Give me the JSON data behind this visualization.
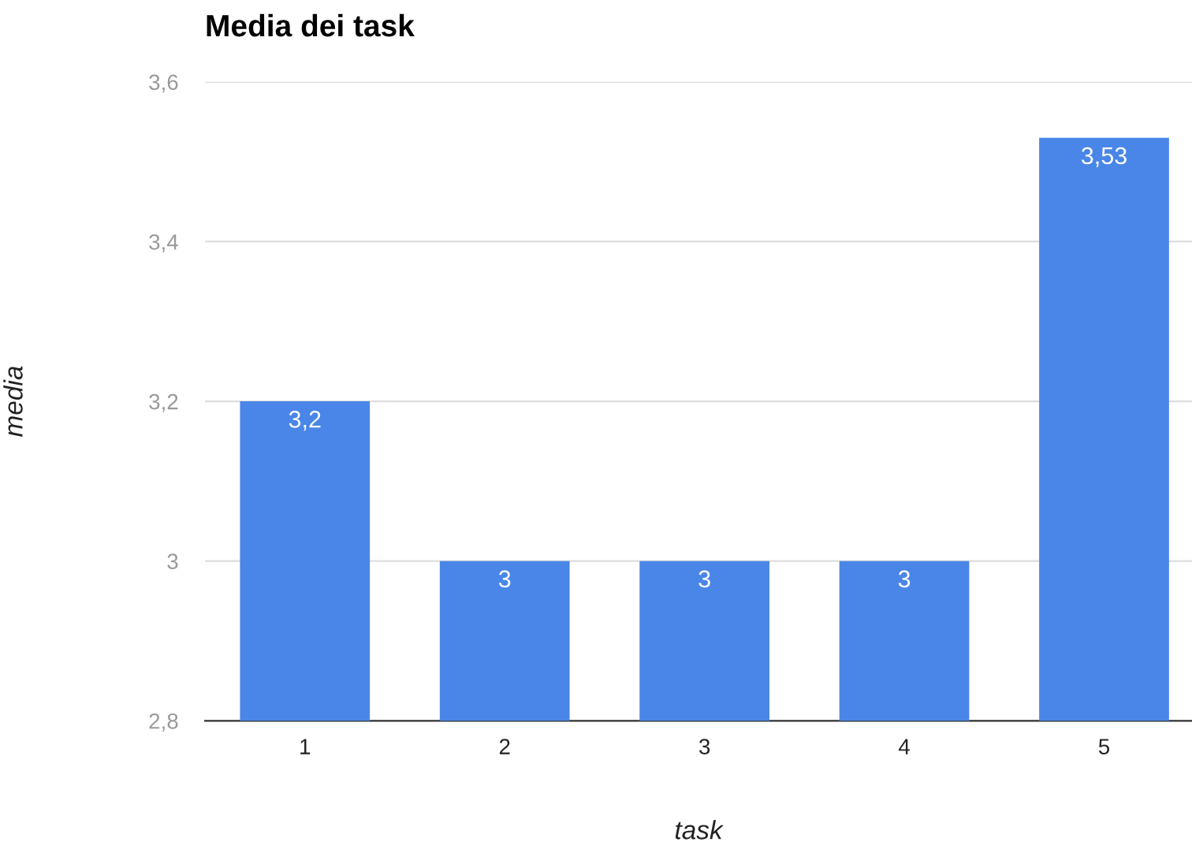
{
  "chart_data": {
    "type": "bar",
    "title": "Media dei task",
    "xlabel": "task",
    "ylabel": "media",
    "categories": [
      "1",
      "2",
      "3",
      "4",
      "5"
    ],
    "values": [
      3.2,
      3.0,
      3.0,
      3.0,
      3.53
    ],
    "value_labels": [
      "3,2",
      "3",
      "3",
      "3",
      "3,53"
    ],
    "color": "#4a86e8",
    "ylim": [
      2.8,
      3.6
    ],
    "yticks": [
      {
        "value": 2.8,
        "label": "2,8"
      },
      {
        "value": 3.0,
        "label": "3"
      },
      {
        "value": 3.2,
        "label": "3,2"
      },
      {
        "value": 3.4,
        "label": "3,4"
      },
      {
        "value": 3.6,
        "label": "3,6"
      }
    ],
    "grid": "y",
    "legend": false
  }
}
